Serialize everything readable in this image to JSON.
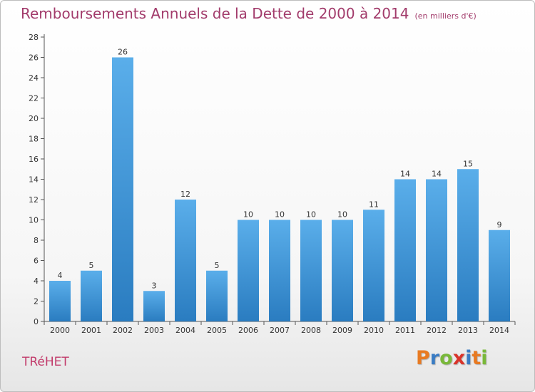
{
  "title": "Remboursements Annuels de la Dette de 2000 à 2014",
  "subtitle": "(en milliers d'€)",
  "commune": "TRéHET",
  "logo": {
    "text": "Proxiti",
    "letter_colors": [
      "#e87a22",
      "#3a7cc4",
      "#79b83a",
      "#d9342b",
      "#3a7cc4",
      "#e87a22",
      "#79b83a"
    ]
  },
  "colors": {
    "bar_top": "#5aaeea",
    "bar_bottom": "#2a7cc0",
    "title": "#a23b6b",
    "commune": "#c23b6b"
  },
  "chart_data": {
    "type": "bar",
    "categories": [
      "2000",
      "2001",
      "2002",
      "2003",
      "2004",
      "2005",
      "2006",
      "2007",
      "2008",
      "2009",
      "2010",
      "2011",
      "2012",
      "2013",
      "2014"
    ],
    "values": [
      4,
      5,
      26,
      3,
      12,
      5,
      10,
      10,
      10,
      10,
      11,
      14,
      14,
      15,
      9
    ],
    "title": "Remboursements Annuels de la Dette de 2000 à 2014",
    "subtitle": "(en milliers d'€)",
    "ylim": [
      0,
      28
    ],
    "yticks": [
      0,
      2,
      4,
      6,
      8,
      10,
      12,
      14,
      16,
      18,
      20,
      22,
      24,
      26,
      28
    ],
    "grid": false,
    "data_labels": true
  }
}
